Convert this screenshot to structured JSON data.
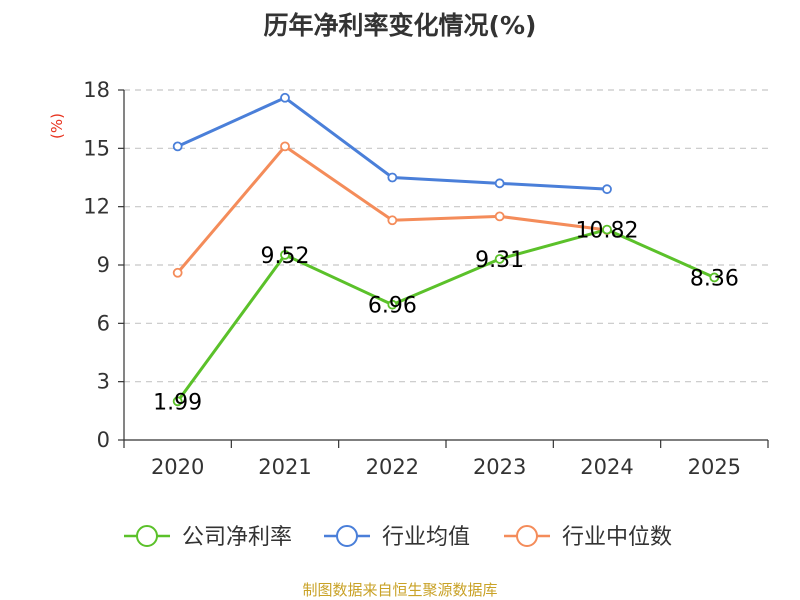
{
  "chart_data": {
    "type": "line",
    "title": "历年净利率变化情况(%)",
    "ylabel": "(%)",
    "xlabel": "",
    "categories": [
      "2020",
      "2021",
      "2022",
      "2023",
      "2024",
      "2025"
    ],
    "ylim": [
      0,
      18
    ],
    "yticks": [
      0,
      3,
      6,
      9,
      12,
      15,
      18
    ],
    "grid": true,
    "legend_position": "bottom",
    "series": [
      {
        "name": "公司净利率",
        "color": "#5bc12a",
        "values": [
          1.99,
          9.52,
          6.96,
          9.31,
          10.82,
          8.36
        ],
        "labels": [
          "1.99",
          "9.52",
          "6.96",
          "9.31",
          "10.82",
          "8.36"
        ]
      },
      {
        "name": "行业均值",
        "color": "#4a7fd9",
        "values": [
          15.1,
          17.6,
          13.5,
          13.2,
          12.9,
          null
        ]
      },
      {
        "name": "行业中位数",
        "color": "#f48c5a",
        "values": [
          8.6,
          15.1,
          11.3,
          11.5,
          10.8,
          null
        ]
      }
    ],
    "source": "制图数据来自恒生聚源数据库"
  }
}
